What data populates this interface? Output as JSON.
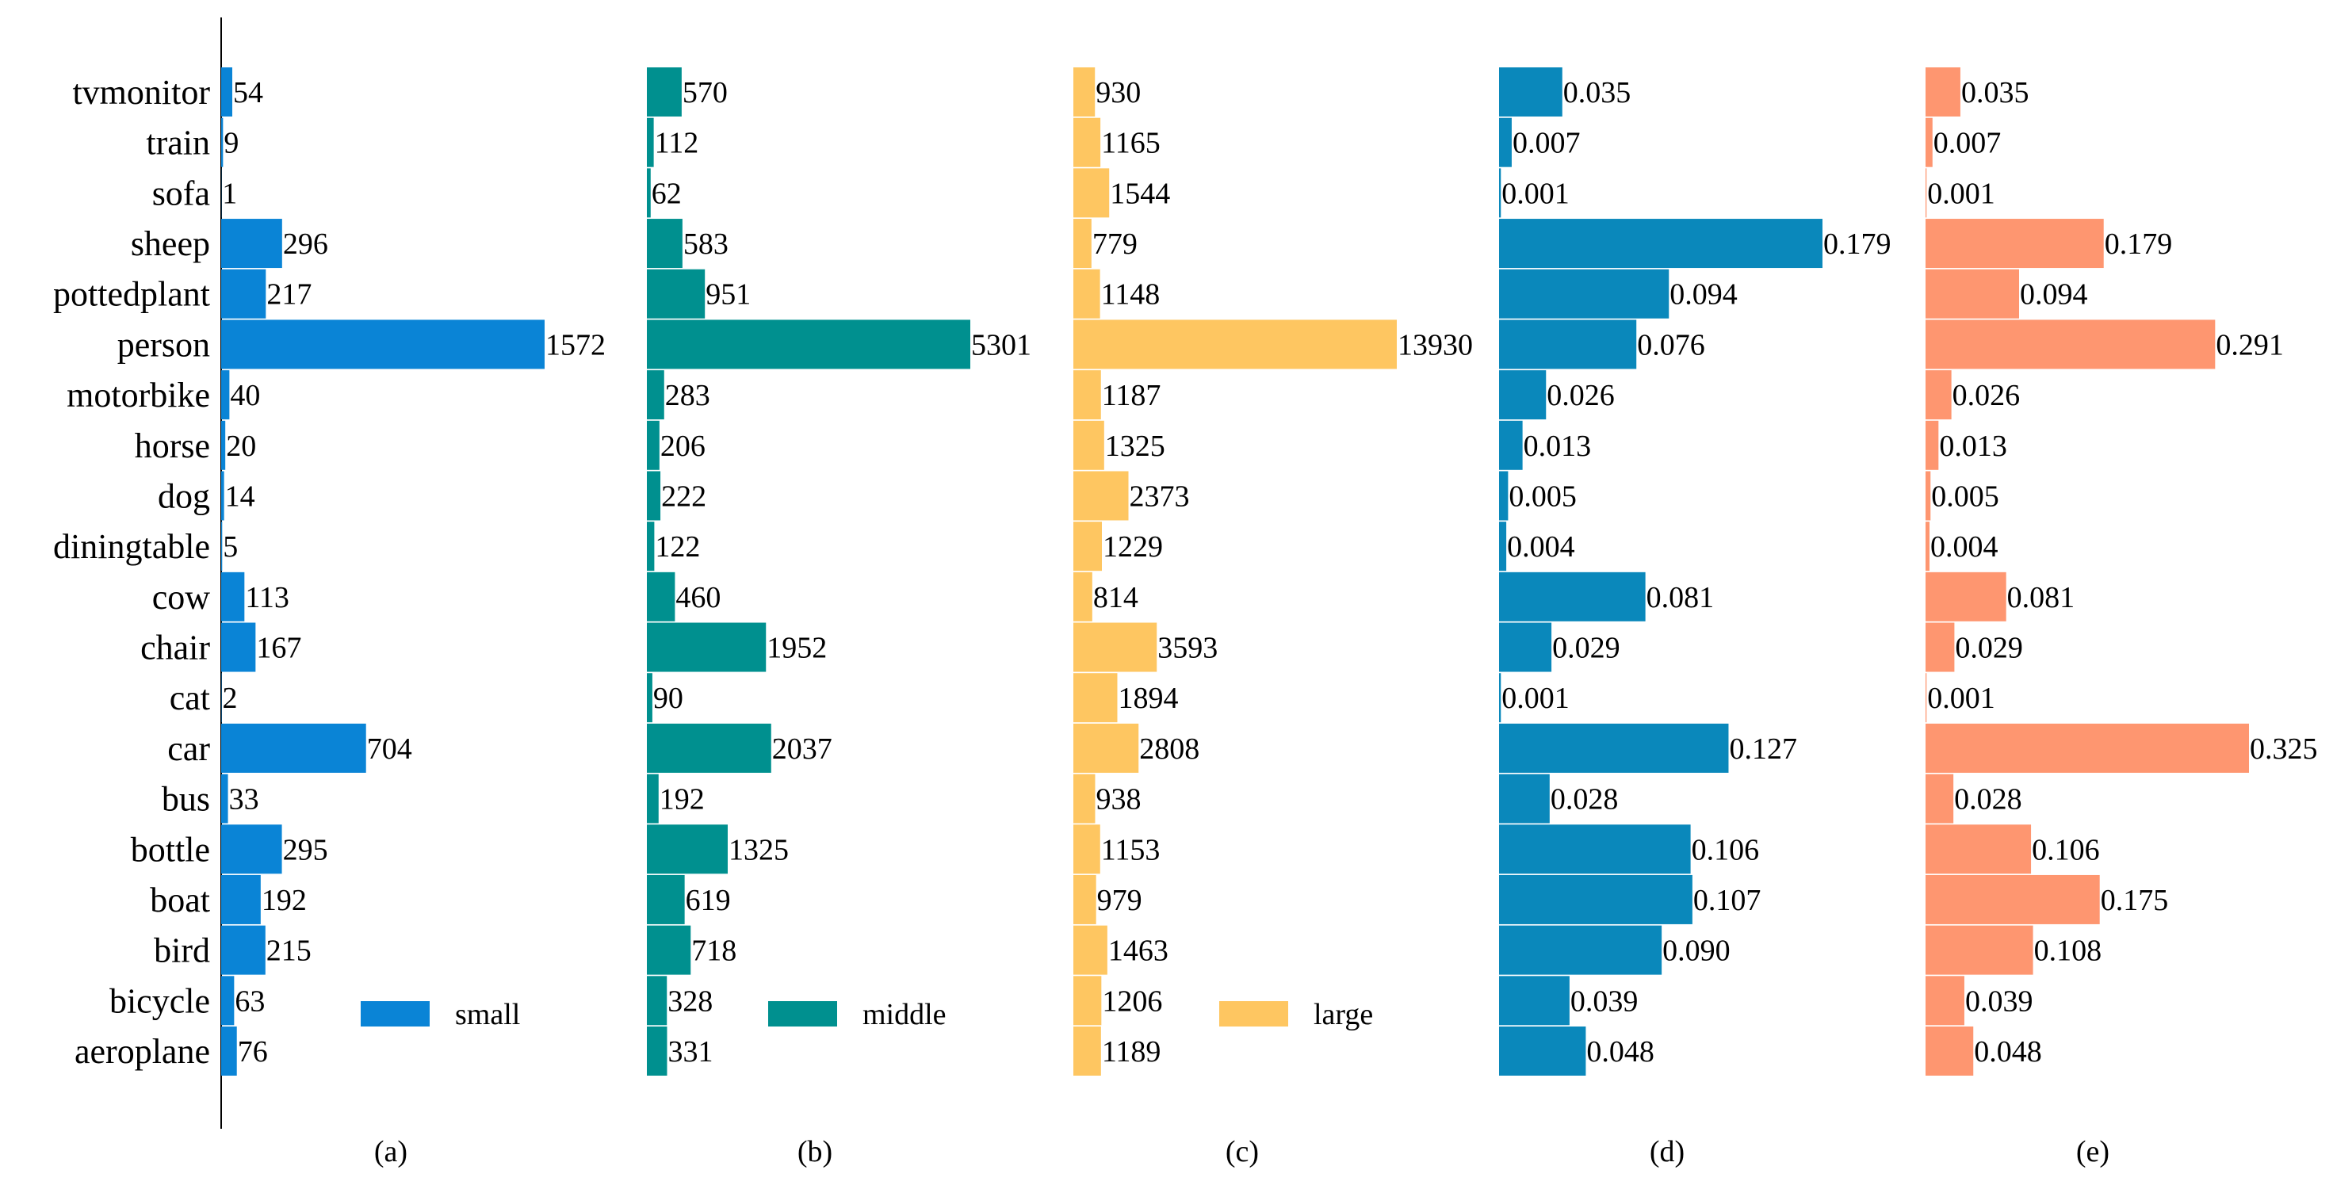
{
  "chart_data": [
    {
      "type": "bar",
      "orientation": "horizontal",
      "panel": "(a)",
      "series": [
        {
          "name": "small",
          "color": "#0a84d6"
        }
      ],
      "categories": [
        "aeroplane",
        "bicycle",
        "bird",
        "boat",
        "bottle",
        "bus",
        "car",
        "cat",
        "chair",
        "cow",
        "diningtable",
        "dog",
        "horse",
        "motorbike",
        "person",
        "pottedplant",
        "sheep",
        "sofa",
        "train",
        "tvmonitor"
      ],
      "values": [
        76,
        63,
        215,
        192,
        295,
        33,
        704,
        2,
        167,
        113,
        5,
        14,
        20,
        40,
        1572,
        217,
        296,
        1,
        9,
        54
      ],
      "value_labels": [
        "76",
        "63",
        "215",
        "192",
        "295",
        "33",
        "704",
        "2",
        "167",
        "113",
        "5",
        "14",
        "20",
        "40",
        "1572",
        "217",
        "296",
        "1",
        "9",
        "54"
      ],
      "xlim": [
        0,
        1572
      ],
      "legend": "small",
      "title": ""
    },
    {
      "type": "bar",
      "orientation": "horizontal",
      "panel": "(b)",
      "series": [
        {
          "name": "middle",
          "color": "#00908f"
        }
      ],
      "categories": [
        "aeroplane",
        "bicycle",
        "bird",
        "boat",
        "bottle",
        "bus",
        "car",
        "cat",
        "chair",
        "cow",
        "diningtable",
        "dog",
        "horse",
        "motorbike",
        "person",
        "pottedplant",
        "sheep",
        "sofa",
        "train",
        "tvmonitor"
      ],
      "values": [
        331,
        328,
        718,
        619,
        1325,
        192,
        2037,
        90,
        1952,
        460,
        122,
        222,
        206,
        283,
        5301,
        951,
        583,
        62,
        112,
        570
      ],
      "value_labels": [
        "331",
        "328",
        "718",
        "619",
        "1325",
        "192",
        "2037",
        "90",
        "1952",
        "460",
        "122",
        "222",
        "206",
        "283",
        "5301",
        "951",
        "583",
        "62",
        "112",
        "570"
      ],
      "xlim": [
        0,
        5301
      ],
      "legend": "middle",
      "title": ""
    },
    {
      "type": "bar",
      "orientation": "horizontal",
      "panel": "(c)",
      "series": [
        {
          "name": "large",
          "color": "#fec661"
        }
      ],
      "categories": [
        "aeroplane",
        "bicycle",
        "bird",
        "boat",
        "bottle",
        "bus",
        "car",
        "cat",
        "chair",
        "cow",
        "diningtable",
        "dog",
        "horse",
        "motorbike",
        "person",
        "pottedplant",
        "sheep",
        "sofa",
        "train",
        "tvmonitor"
      ],
      "values": [
        1189,
        1206,
        1463,
        979,
        1153,
        938,
        2808,
        1894,
        3593,
        814,
        1229,
        2373,
        1325,
        1187,
        13930,
        1148,
        779,
        1544,
        1165,
        930
      ],
      "value_labels": [
        "1189",
        "1206",
        "1463",
        "979",
        "1153",
        "938",
        "2808",
        "1894",
        "3593",
        "814",
        "1229",
        "2373",
        "1325",
        "1187",
        "13930",
        "1148",
        "779",
        "1544",
        "1165",
        "930"
      ],
      "xlim": [
        0,
        13930
      ],
      "legend": "large",
      "title": ""
    },
    {
      "type": "bar",
      "orientation": "horizontal",
      "panel": "(d)",
      "series": [
        {
          "name": "",
          "color": "#0a88bb"
        }
      ],
      "categories": [
        "aeroplane",
        "bicycle",
        "bird",
        "boat",
        "bottle",
        "bus",
        "car",
        "cat",
        "chair",
        "cow",
        "diningtable",
        "dog",
        "horse",
        "motorbike",
        "person",
        "pottedplant",
        "sheep",
        "sofa",
        "train",
        "tvmonitor"
      ],
      "values": [
        0.048,
        0.039,
        0.09,
        0.107,
        0.106,
        0.028,
        0.127,
        0.001,
        0.029,
        0.081,
        0.004,
        0.005,
        0.013,
        0.026,
        0.076,
        0.094,
        0.179,
        0.001,
        0.007,
        0.035
      ],
      "value_labels": [
        "0.048",
        "0.039",
        "0.090",
        "0.107",
        "0.106",
        "0.028",
        "0.127",
        "0.001",
        "0.029",
        "0.081",
        "0.004",
        "0.005",
        "0.013",
        "0.026",
        "0.076",
        "0.094",
        "0.179",
        "0.001",
        "0.007",
        "0.035"
      ],
      "xlim": [
        0,
        0.179
      ],
      "title": ""
    },
    {
      "type": "bar",
      "orientation": "horizontal",
      "panel": "(e)",
      "series": [
        {
          "name": "",
          "color": "#fe9670"
        }
      ],
      "categories": [
        "aeroplane",
        "bicycle",
        "bird",
        "boat",
        "bottle",
        "bus",
        "car",
        "cat",
        "chair",
        "cow",
        "diningtable",
        "dog",
        "horse",
        "motorbike",
        "person",
        "pottedplant",
        "sheep",
        "sofa",
        "train",
        "tvmonitor"
      ],
      "values": [
        0.048,
        0.039,
        0.108,
        0.175,
        0.106,
        0.028,
        0.325,
        0.001,
        0.029,
        0.081,
        0.004,
        0.005,
        0.013,
        0.026,
        0.291,
        0.094,
        0.179,
        0.001,
        0.007,
        0.035
      ],
      "value_labels": [
        "0.048",
        "0.039",
        "0.108",
        "0.175",
        "0.106",
        "0.028",
        "0.325",
        "0.001",
        "0.029",
        "0.081",
        "0.004",
        "0.005",
        "0.013",
        "0.026",
        "0.291",
        "0.094",
        "0.179",
        "0.001",
        "0.007",
        "0.035"
      ],
      "xlim": [
        0,
        0.325
      ],
      "title": ""
    }
  ]
}
